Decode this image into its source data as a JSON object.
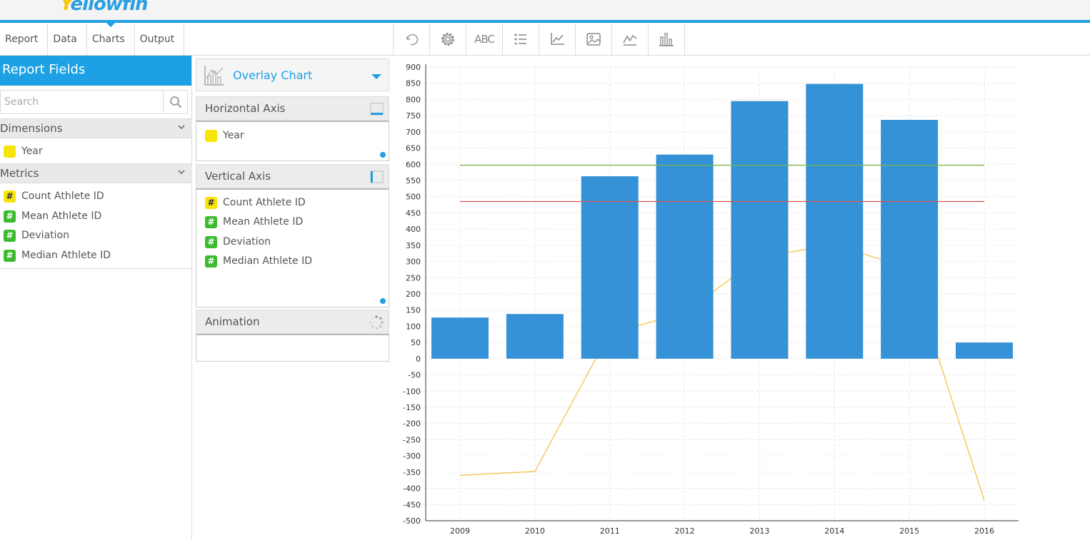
{
  "app": {
    "logo_lead": "Y",
    "logo_rest": "ellowfin"
  },
  "nav": {
    "tabs": [
      "Report",
      "Data",
      "Charts",
      "Output"
    ],
    "active": "Charts"
  },
  "toolbar": {
    "abc_label": "ABC",
    "icons": [
      "undo-icon",
      "gear-icon",
      "text-icon",
      "list-icon",
      "axis-icon",
      "image-icon",
      "line-chart-icon",
      "bar-chart-icon"
    ]
  },
  "left": {
    "header": "Report Fields",
    "search_placeholder": "Search",
    "dimensions_label": "Dimensions",
    "dimensions": [
      "Year"
    ],
    "metrics_label": "Metrics",
    "metrics": [
      "Count Athlete ID",
      "Mean Athlete ID",
      "Deviation",
      "Median Athlete ID"
    ]
  },
  "mid": {
    "chart_type": "Overlay Chart",
    "horizontal_axis_label": "Horizontal Axis",
    "horizontal_fields": [
      "Year"
    ],
    "vertical_axis_label": "Vertical Axis",
    "vertical_fields": [
      "Count Athlete ID",
      "Mean Athlete ID",
      "Deviation",
      "Median Athlete ID"
    ],
    "animation_label": "Animation"
  },
  "colors": {
    "accent": "#1da1e4",
    "bar": "#3592d6",
    "green_line": "#7ab648",
    "red_line": "#d9534f",
    "yellow_line": "#f6c244"
  },
  "chart_data": {
    "type": "bar",
    "categories": [
      "2009",
      "2010",
      "2011",
      "2012",
      "2013",
      "2014",
      "2015",
      "2016"
    ],
    "series": [
      {
        "type": "bar",
        "values": [
          127,
          138,
          563,
          630,
          795,
          848,
          737,
          50
        ]
      },
      {
        "type": "line",
        "values": [
          -360,
          -348,
          80,
          140,
          315,
          350,
          280,
          -437
        ]
      },
      {
        "type": "line",
        "values": [
          597,
          597,
          597,
          597,
          597,
          597,
          597,
          597
        ]
      },
      {
        "type": "line",
        "values": [
          485,
          485,
          485,
          485,
          485,
          485,
          485,
          485
        ]
      }
    ],
    "ylim": [
      -500,
      900
    ],
    "yticks": [
      900,
      850,
      800,
      750,
      700,
      650,
      600,
      550,
      500,
      450,
      400,
      350,
      300,
      250,
      200,
      150,
      100,
      50,
      0,
      -50,
      -100,
      -150,
      -200,
      -250,
      -300,
      -350,
      -400,
      -450,
      -500
    ],
    "grid": true
  }
}
